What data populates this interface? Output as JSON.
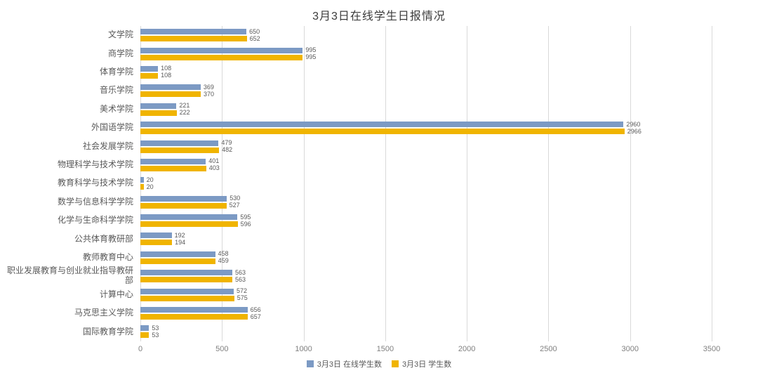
{
  "title": "3月3日在线学生日报情况",
  "chart_data": {
    "type": "bar",
    "orientation": "horizontal",
    "title": "3月3日在线学生日报情况",
    "categories": [
      "文学院",
      "商学院",
      "体育学院",
      "音乐学院",
      "美术学院",
      "外国语学院",
      "社会发展学院",
      "物理科学与技术学院",
      "教育科学与技术学院",
      "数学与信息科学学院",
      "化学与生命科学学院",
      "公共体育教研部",
      "教师教育中心",
      "职业发展教育与创业就业指导教研部",
      "计算中心",
      "马克思主义学院",
      "国际教育学院"
    ],
    "series": [
      {
        "name": "3月3日 在线学生数",
        "color": "#7c9ac4",
        "values": [
          650,
          995,
          108,
          369,
          221,
          2960,
          479,
          401,
          20,
          530,
          595,
          192,
          458,
          563,
          572,
          656,
          53
        ]
      },
      {
        "name": "3月3日 学生数",
        "color": "#f0b400",
        "values": [
          652,
          995,
          108,
          370,
          222,
          2966,
          482,
          403,
          20,
          527,
          596,
          194,
          459,
          563,
          575,
          657,
          53
        ]
      }
    ],
    "xlim": [
      0,
      3500
    ],
    "xticks": [
      0,
      500,
      1000,
      1500,
      2000,
      2500,
      3000,
      3500
    ],
    "grid": true,
    "legend_position": "bottom",
    "value_labels": true,
    "colors": {
      "grid_line": "#d9d9d9",
      "axis_text": "#808080",
      "label_text": "#595959",
      "title_text": "#3b3b3b",
      "background": "#ffffff"
    }
  }
}
